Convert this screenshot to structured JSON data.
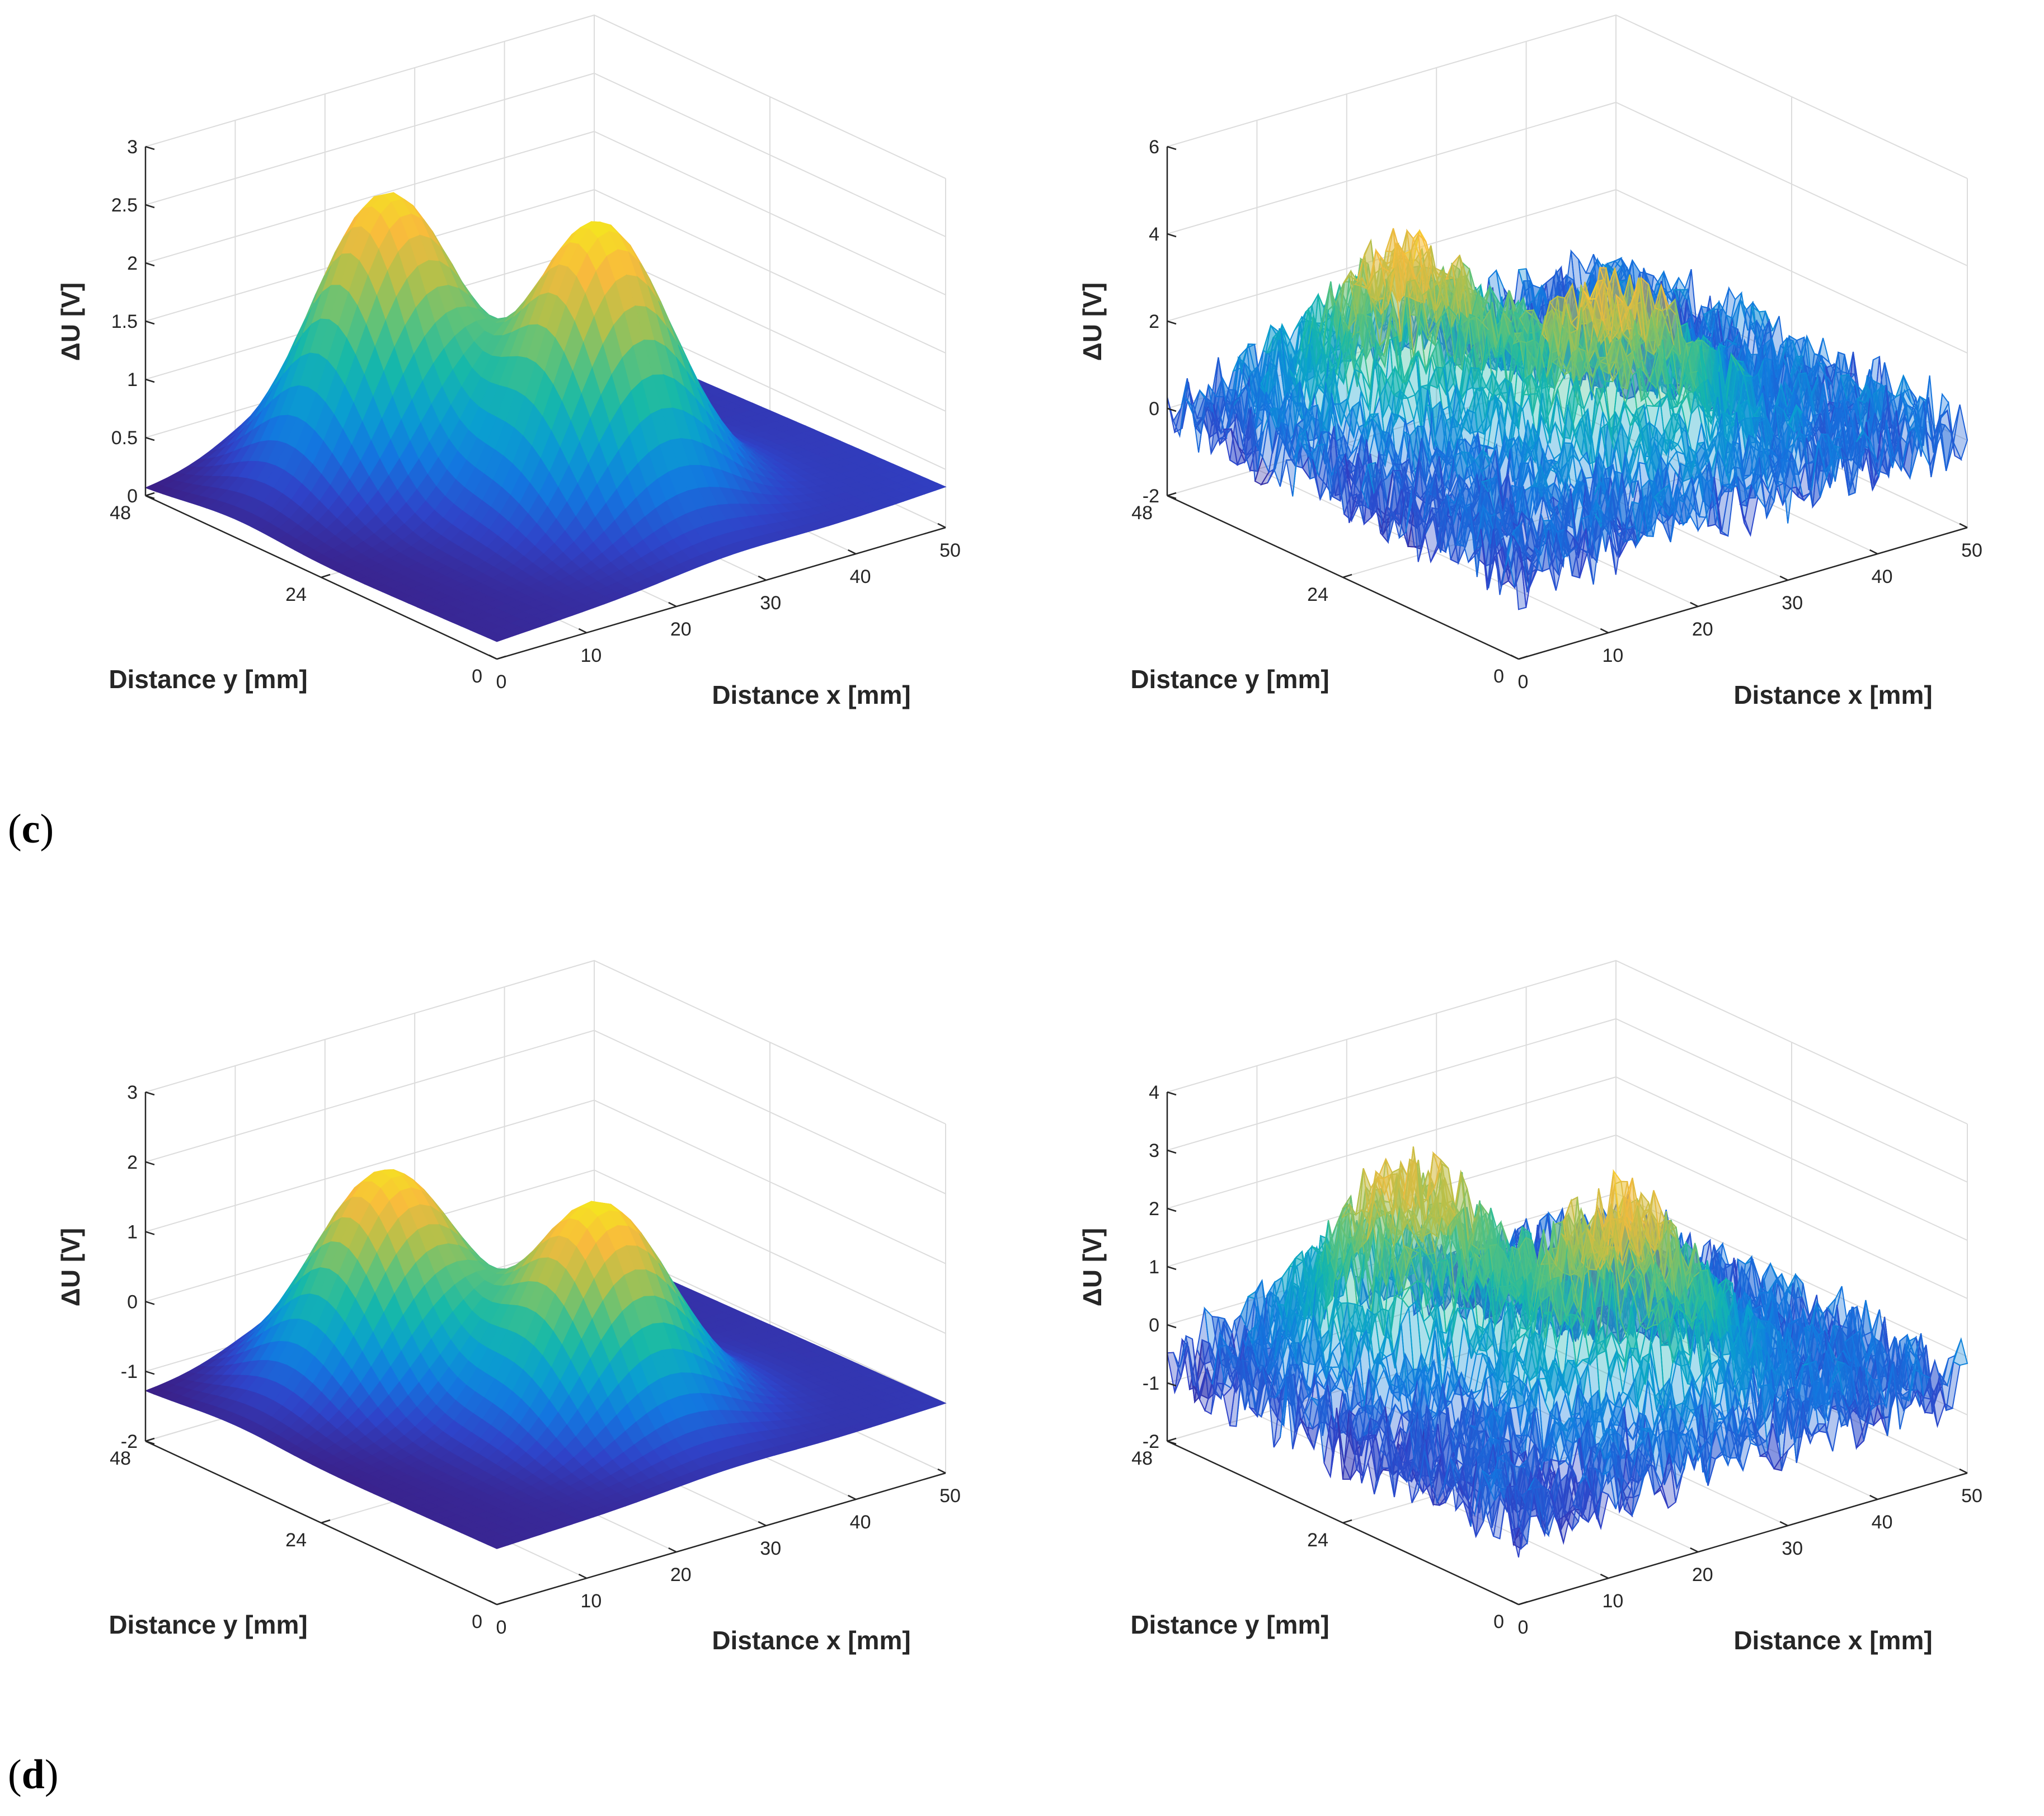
{
  "panels": [
    {
      "label": "c",
      "label_open": "(",
      "label_close": ")"
    },
    {
      "label": "d",
      "label_open": "(",
      "label_close": ")"
    }
  ],
  "colors": {
    "grid": "#dcdcdc",
    "axis": "#262626",
    "text": "#262626",
    "colormap": [
      "#3b1f86",
      "#2f43c9",
      "#1377e0",
      "#0a9fd0",
      "#17b9a8",
      "#5ec27a",
      "#b5c04a",
      "#f8ba3d",
      "#f5e61f"
    ]
  },
  "chart_data": [
    {
      "type": "surface",
      "id": "c-left",
      "style": "smooth",
      "title": "",
      "xlabel": "Distance x [mm]",
      "ylabel": "Distance y [mm]",
      "zlabel": "ΔU [V]",
      "xlim": [
        0,
        50
      ],
      "ylim": [
        0,
        48
      ],
      "zlim": [
        0,
        3
      ],
      "xticks": [
        "0",
        "10",
        "20",
        "30",
        "40",
        "50"
      ],
      "yticks": [
        "0",
        "24",
        "48"
      ],
      "zticks": [
        "0",
        "0.5",
        "1",
        "1.5",
        "2",
        "2.5",
        "3"
      ],
      "zvals": [
        0,
        0.5,
        1,
        1.5,
        2,
        2.5,
        3
      ],
      "peaks": [
        {
          "x": 17,
          "y": 36,
          "amplitude": 2.4
        },
        {
          "x": 26,
          "y": 18,
          "amplitude": 2.4
        }
      ],
      "baseline": 0.15,
      "noise": 0
    },
    {
      "type": "surface",
      "id": "c-right",
      "style": "mesh",
      "title": "",
      "xlabel": "Distance x [mm]",
      "ylabel": "Distance y [mm]",
      "zlabel": "ΔU [V]",
      "xlim": [
        0,
        50
      ],
      "ylim": [
        0,
        48
      ],
      "zlim": [
        -2,
        6
      ],
      "xticks": [
        "0",
        "10",
        "20",
        "30",
        "40",
        "50"
      ],
      "yticks": [
        "0",
        "24",
        "48"
      ],
      "zticks": [
        "-2",
        "0",
        "2",
        "4",
        "6"
      ],
      "zvals": [
        -2,
        0,
        2,
        4,
        6
      ],
      "peaks": [
        {
          "x": 17,
          "y": 36,
          "amplitude": 3.2
        },
        {
          "x": 26,
          "y": 18,
          "amplitude": 3.0
        }
      ],
      "baseline": 0,
      "noise": 0.9
    },
    {
      "type": "surface",
      "id": "d-left",
      "style": "smooth",
      "title": "",
      "xlabel": "Distance x [mm]",
      "ylabel": "Distance y [mm]",
      "zlabel": "ΔU [V]",
      "xlim": [
        0,
        50
      ],
      "ylim": [
        0,
        48
      ],
      "zlim": [
        -2,
        3
      ],
      "xticks": [
        "0",
        "10",
        "20",
        "30",
        "40",
        "50"
      ],
      "yticks": [
        "0",
        "24",
        "48"
      ],
      "zticks": [
        "-2",
        "-1",
        "0",
        "1",
        "2",
        "3"
      ],
      "zvals": [
        -2,
        -1,
        0,
        1,
        2,
        3
      ],
      "peaks": [
        {
          "x": 17,
          "y": 36,
          "amplitude": 3.0
        },
        {
          "x": 26,
          "y": 18,
          "amplitude": 3.0
        }
      ],
      "baseline": -1.2,
      "noise": 0
    },
    {
      "type": "surface",
      "id": "d-right",
      "style": "mesh",
      "title": "",
      "xlabel": "Distance x [mm]",
      "ylabel": "Distance y [mm]",
      "zlabel": "ΔU [V]",
      "xlim": [
        0,
        50
      ],
      "ylim": [
        0,
        48
      ],
      "zlim": [
        -2,
        4
      ],
      "xticks": [
        "0",
        "10",
        "20",
        "30",
        "40",
        "50"
      ],
      "yticks": [
        "0",
        "24",
        "48"
      ],
      "zticks": [
        "-2",
        "-1",
        "0",
        "1",
        "2",
        "3",
        "4"
      ],
      "zvals": [
        -2,
        -1,
        0,
        1,
        2,
        3,
        4
      ],
      "peaks": [
        {
          "x": 17,
          "y": 36,
          "amplitude": 3.0
        },
        {
          "x": 26,
          "y": 18,
          "amplitude": 3.0
        }
      ],
      "baseline": -0.6,
      "noise": 0.7
    }
  ]
}
